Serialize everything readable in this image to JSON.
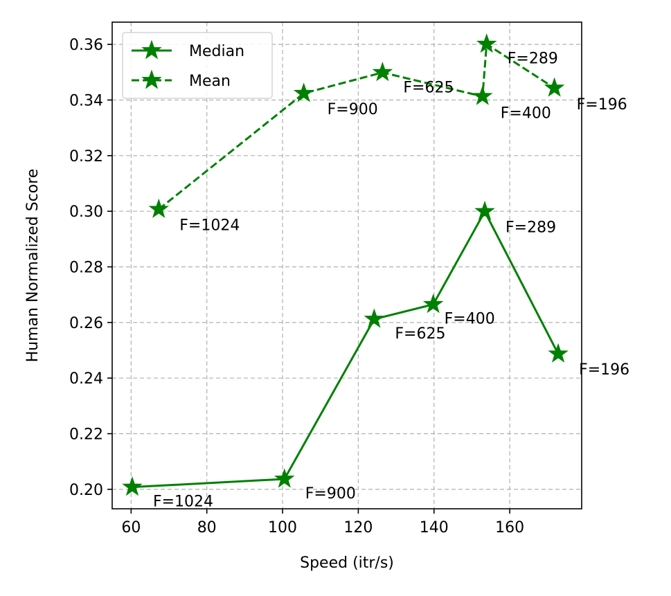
{
  "chart_data": {
    "type": "line",
    "xlabel": "Speed (itr/s)",
    "ylabel": "Human Normalized Score",
    "xlim": [
      55,
      179
    ],
    "ylim": [
      0.193,
      0.368
    ],
    "xticks": [
      60,
      80,
      100,
      120,
      140,
      160
    ],
    "yticks": [
      0.2,
      0.22,
      0.24,
      0.26,
      0.28,
      0.3,
      0.32,
      0.34,
      0.36
    ],
    "xtick_labels": [
      "60",
      "80",
      "100",
      "120",
      "140",
      "160"
    ],
    "ytick_labels": [
      "0.20",
      "0.22",
      "0.24",
      "0.26",
      "0.28",
      "0.30",
      "0.32",
      "0.34",
      "0.36"
    ],
    "grid": true,
    "legend_position": "upper-left",
    "color": "#008000",
    "series": [
      {
        "name": "Median",
        "linestyle": "solid",
        "marker": "star",
        "points": [
          {
            "x": 60.3,
            "y": 0.2008,
            "label": "F=1024"
          },
          {
            "x": 100.5,
            "y": 0.2037,
            "label": "F=900"
          },
          {
            "x": 124.2,
            "y": 0.2612,
            "label": "F=625"
          },
          {
            "x": 139.8,
            "y": 0.2665,
            "label": "F=400"
          },
          {
            "x": 153.4,
            "y": 0.2999,
            "label": "F=289"
          },
          {
            "x": 172.8,
            "y": 0.2487,
            "label": "F=196"
          }
        ]
      },
      {
        "name": "Mean",
        "linestyle": "dashed",
        "marker": "star",
        "points": [
          {
            "x": 67.3,
            "y": 0.3007,
            "label": "F=1024"
          },
          {
            "x": 105.6,
            "y": 0.3424,
            "label": "F=900"
          },
          {
            "x": 126.4,
            "y": 0.3499,
            "label": "F=625"
          },
          {
            "x": 152.8,
            "y": 0.3413,
            "label": "F=400"
          },
          {
            "x": 153.9,
            "y": 0.3601,
            "label": "F=289"
          },
          {
            "x": 171.8,
            "y": 0.3443,
            "label": "F=196"
          }
        ]
      }
    ]
  }
}
